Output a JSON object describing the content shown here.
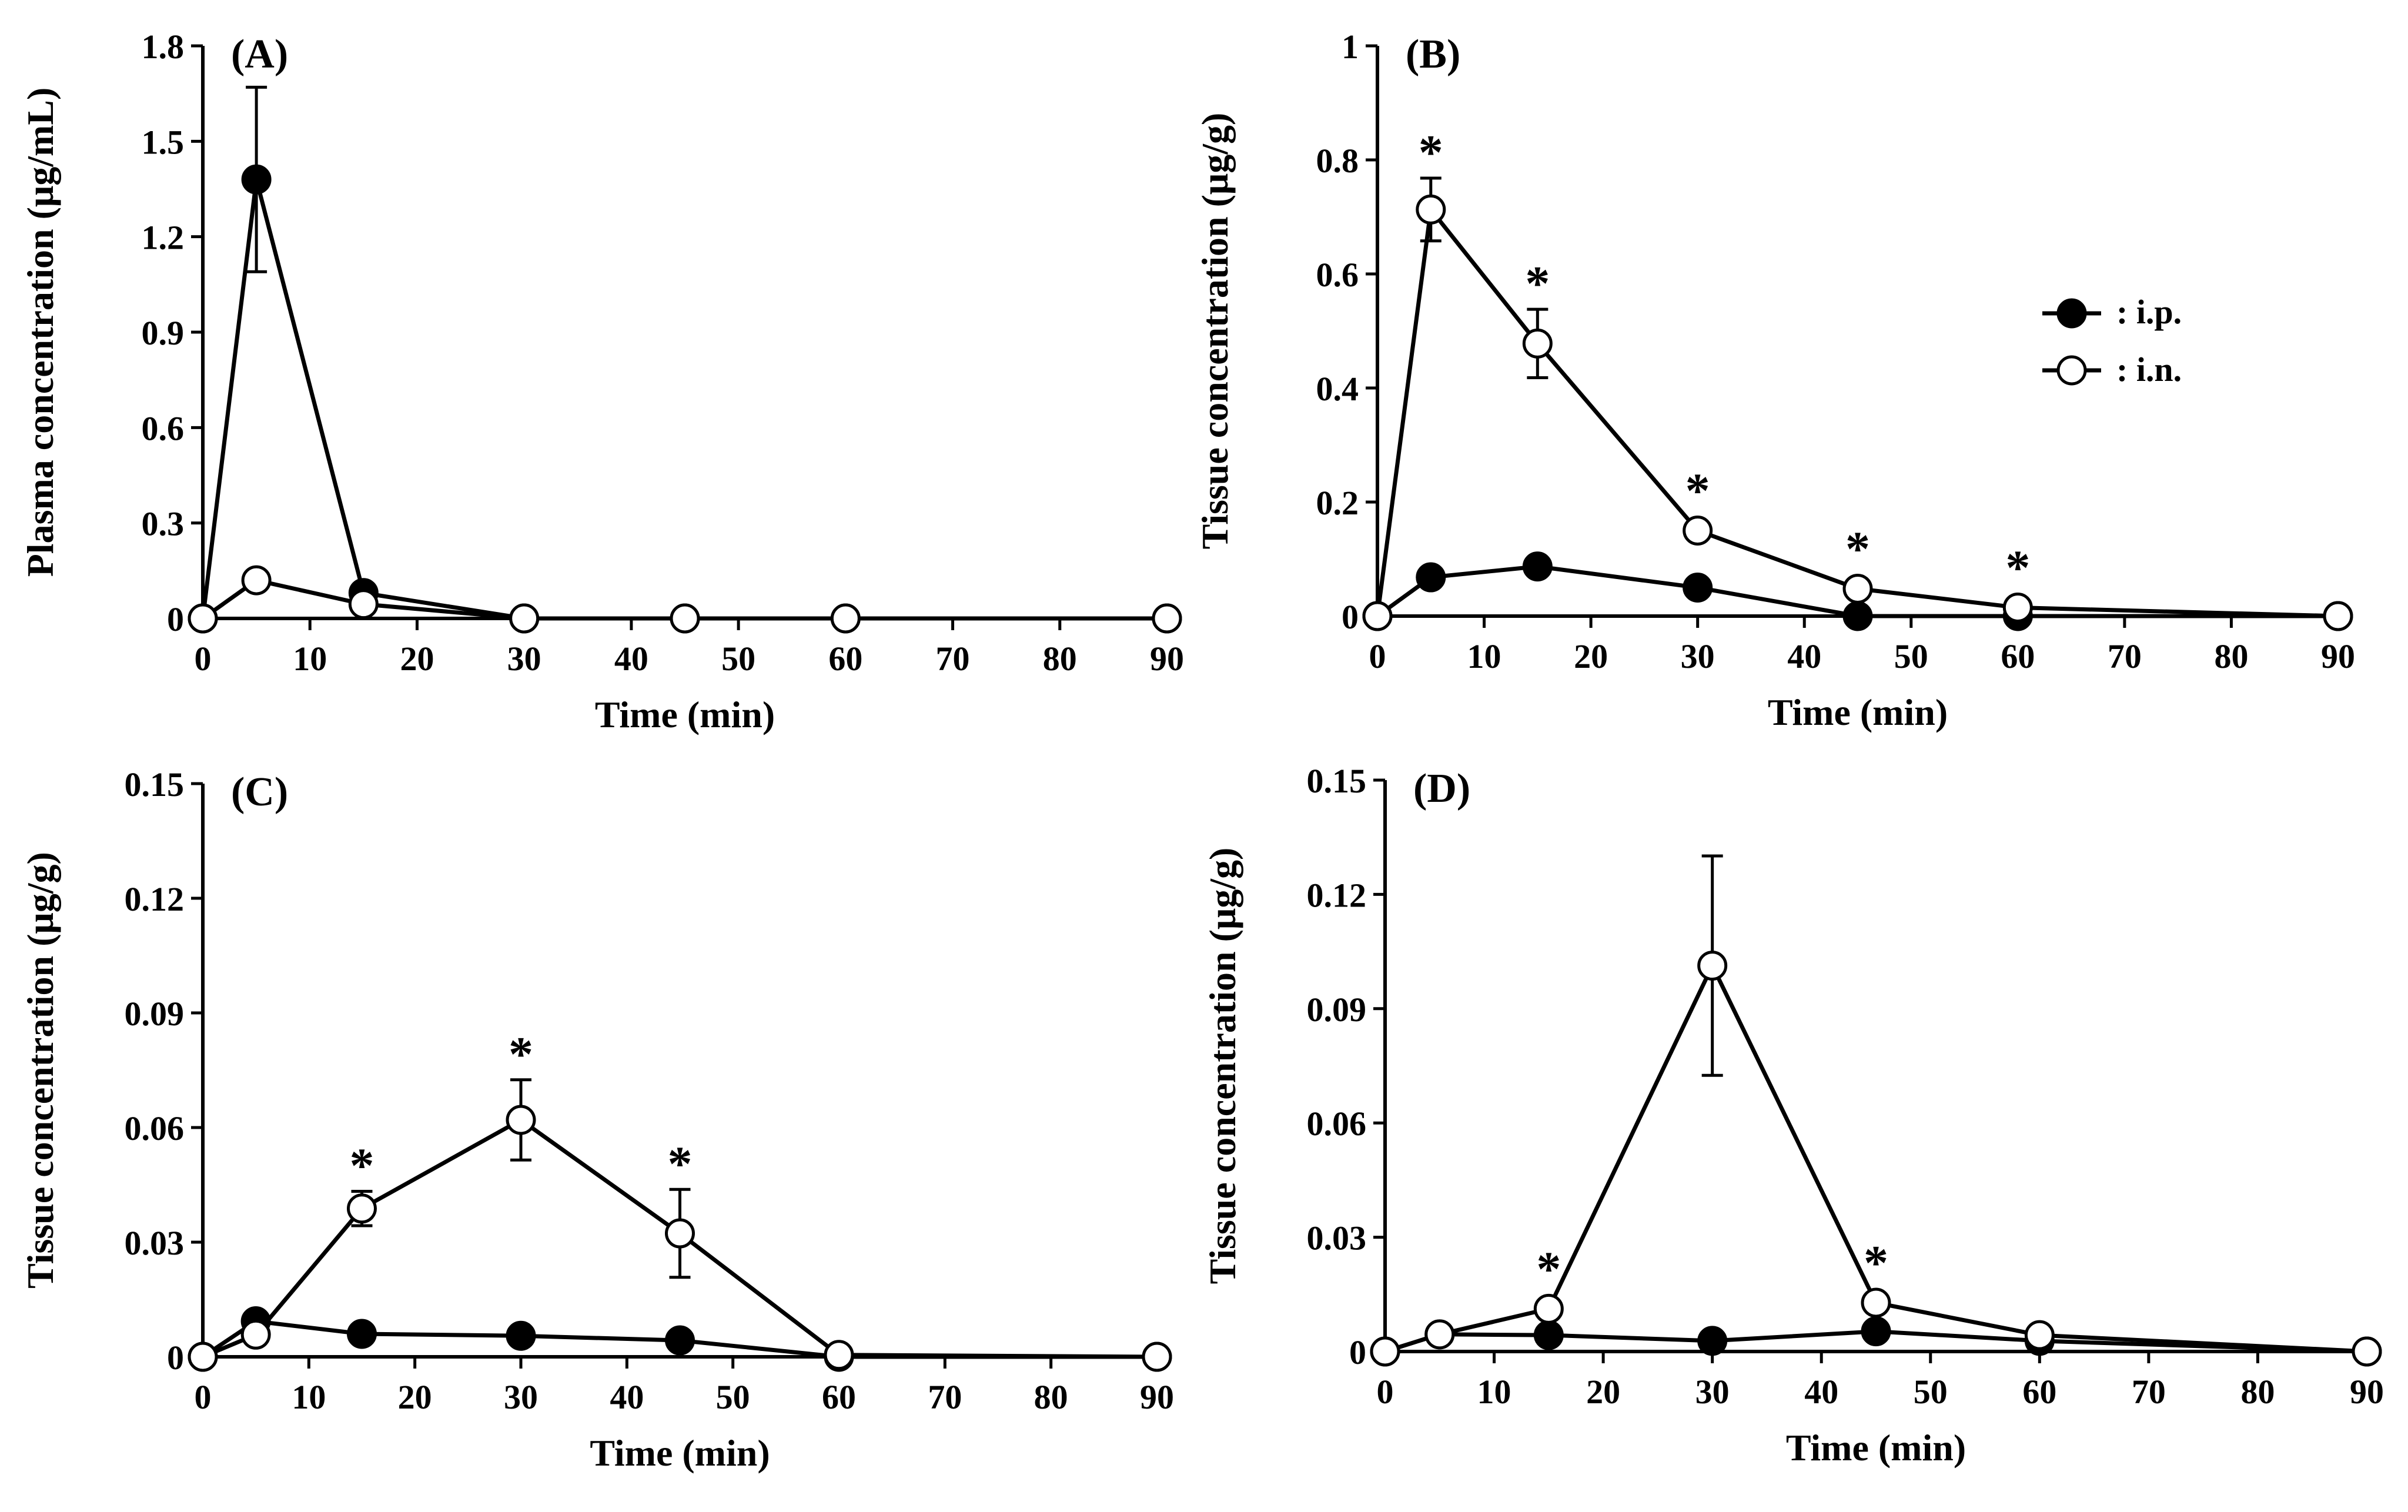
{
  "figure": {
    "legend": {
      "ip_label": ": i.p.",
      "in_label": ": i.n."
    }
  },
  "chart_data": [
    {
      "type": "line",
      "panel_label": "(A)",
      "xlabel": "Time (min)",
      "ylabel": "Plasma concentration  (μg/mL)",
      "xlim": [
        0,
        90
      ],
      "ylim": [
        0,
        1.8
      ],
      "x_ticks": [
        "0",
        "10",
        "20",
        "30",
        "40",
        "50",
        "60",
        "70",
        "80",
        "90"
      ],
      "y_ticks": [
        "0",
        "0.3",
        "0.6",
        "0.9",
        "1.2",
        "1.5",
        "1.8"
      ],
      "x": [
        0,
        5,
        15,
        30,
        45,
        60,
        90
      ],
      "series": [
        {
          "name": "i.p.",
          "marker": "filled",
          "values": [
            0,
            1.38,
            0.08,
            0,
            0,
            0,
            0
          ],
          "error": [
            null,
            0.29,
            null,
            null,
            null,
            null,
            null
          ],
          "sig": []
        },
        {
          "name": "i.n.",
          "marker": "open",
          "values": [
            0,
            0.12,
            0.045,
            0,
            0,
            0,
            0
          ],
          "error": [
            null,
            null,
            null,
            null,
            null,
            null,
            null
          ],
          "sig": []
        }
      ]
    },
    {
      "type": "line",
      "panel_label": "(B)",
      "xlabel": "Time (min)",
      "ylabel": "Tissue concentration  (μg/g)",
      "xlim": [
        0,
        90
      ],
      "ylim": [
        0,
        1
      ],
      "x_ticks": [
        "0",
        "10",
        "20",
        "30",
        "40",
        "50",
        "60",
        "70",
        "80",
        "90"
      ],
      "y_ticks": [
        "0",
        "0.2",
        "0.4",
        "0.6",
        "0.8",
        "1"
      ],
      "x": [
        0,
        5,
        15,
        30,
        45,
        60,
        90
      ],
      "series": [
        {
          "name": "i.p.",
          "marker": "filled",
          "values": [
            0,
            0.068,
            0.087,
            0.05,
            0,
            0,
            0
          ],
          "error": [
            null,
            null,
            null,
            null,
            null,
            null,
            null
          ],
          "sig": []
        },
        {
          "name": "i.n.",
          "marker": "open",
          "values": [
            0,
            0.713,
            0.478,
            0.15,
            0.048,
            0.015,
            0
          ],
          "error": [
            null,
            0.055,
            0.06,
            null,
            null,
            null,
            null
          ],
          "sig": [
            5,
            15,
            30,
            45,
            60
          ]
        }
      ],
      "sig_symbol": "*"
    },
    {
      "type": "line",
      "panel_label": "(C)",
      "xlabel": "Time (min)",
      "ylabel": "Tissue concentration  (μg/g)",
      "xlim": [
        0,
        90
      ],
      "ylim": [
        0,
        0.15
      ],
      "x_ticks": [
        "0",
        "10",
        "20",
        "30",
        "40",
        "50",
        "60",
        "70",
        "80",
        "90"
      ],
      "y_ticks": [
        "0",
        "0.03",
        "0.06",
        "0.09",
        "0.12",
        "0.15"
      ],
      "x": [
        0,
        5,
        15,
        30,
        45,
        60,
        90
      ],
      "series": [
        {
          "name": "i.p.",
          "marker": "filled",
          "values": [
            0,
            0.0093,
            0.006,
            0.0055,
            0.0043,
            0,
            0
          ],
          "error": [
            null,
            null,
            null,
            null,
            null,
            null,
            null
          ],
          "sig": []
        },
        {
          "name": "i.n.",
          "marker": "open",
          "values": [
            0,
            0.0058,
            0.0388,
            0.062,
            0.0323,
            0.0005,
            0
          ],
          "error": [
            null,
            null,
            0.0045,
            0.0105,
            0.0115,
            null,
            null
          ],
          "sig": [
            15,
            30,
            45
          ]
        }
      ],
      "sig_symbol": "*"
    },
    {
      "type": "line",
      "panel_label": "(D)",
      "xlabel": "Time (min)",
      "ylabel": "Tissue concentration  (μg/g)",
      "xlim": [
        0,
        90
      ],
      "ylim": [
        0,
        0.15
      ],
      "x_ticks": [
        "0",
        "10",
        "20",
        "30",
        "40",
        "50",
        "60",
        "70",
        "80",
        "90"
      ],
      "y_ticks": [
        "0",
        "0.03",
        "0.06",
        "0.09",
        "0.12",
        "0.15"
      ],
      "x": [
        0,
        5,
        15,
        30,
        45,
        60,
        90
      ],
      "series": [
        {
          "name": "i.p.",
          "marker": "filled",
          "values": [
            0,
            0.0045,
            0.0043,
            0.0028,
            0.0053,
            0.0028,
            0
          ],
          "error": [
            null,
            null,
            null,
            null,
            null,
            null,
            null
          ],
          "sig": []
        },
        {
          "name": "i.n.",
          "marker": "open",
          "values": [
            0,
            0.0045,
            0.0112,
            0.1013,
            0.0128,
            0.0043,
            0
          ],
          "error": [
            null,
            null,
            null,
            0.0288,
            null,
            null,
            null
          ],
          "sig": [
            15,
            45
          ]
        }
      ],
      "sig_symbol": "*"
    }
  ]
}
